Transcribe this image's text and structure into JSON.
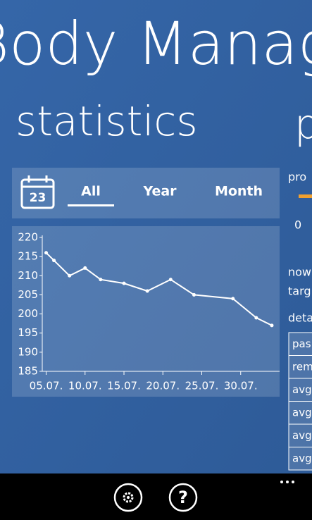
{
  "header": {
    "app_title": "Body Manager",
    "page_title": "statistics",
    "next_page_title": "p"
  },
  "tabs": {
    "calendar_day": "23",
    "items": [
      "All",
      "Year",
      "Month"
    ],
    "selected": 0
  },
  "chart_data": {
    "type": "line",
    "color": "#ffffff",
    "x": [
      5,
      6,
      8,
      10,
      12,
      15,
      18,
      21,
      24,
      29,
      32,
      34
    ],
    "values": [
      216,
      214,
      210,
      212,
      209,
      208,
      206,
      209,
      205,
      204,
      199,
      197
    ],
    "xlim": [
      4.5,
      35
    ],
    "xticks": [
      {
        "value": 5,
        "label": "05.07."
      },
      {
        "value": 10,
        "label": "10.07."
      },
      {
        "value": 15,
        "label": "15.07."
      },
      {
        "value": 20,
        "label": "20.07."
      },
      {
        "value": 25,
        "label": "25.07."
      },
      {
        "value": 30,
        "label": "30.07."
      }
    ],
    "ylim": [
      185,
      220
    ],
    "yticks": [
      185,
      190,
      195,
      200,
      205,
      210,
      215,
      220
    ],
    "grid": false
  },
  "side_panel": {
    "progress_label": "pro",
    "progress_value": 0,
    "now_label": "now",
    "target_label": "targ",
    "details_label": "deta",
    "rows": [
      "pas",
      "rem",
      "avg",
      "avg",
      "avg",
      "avg"
    ]
  }
}
